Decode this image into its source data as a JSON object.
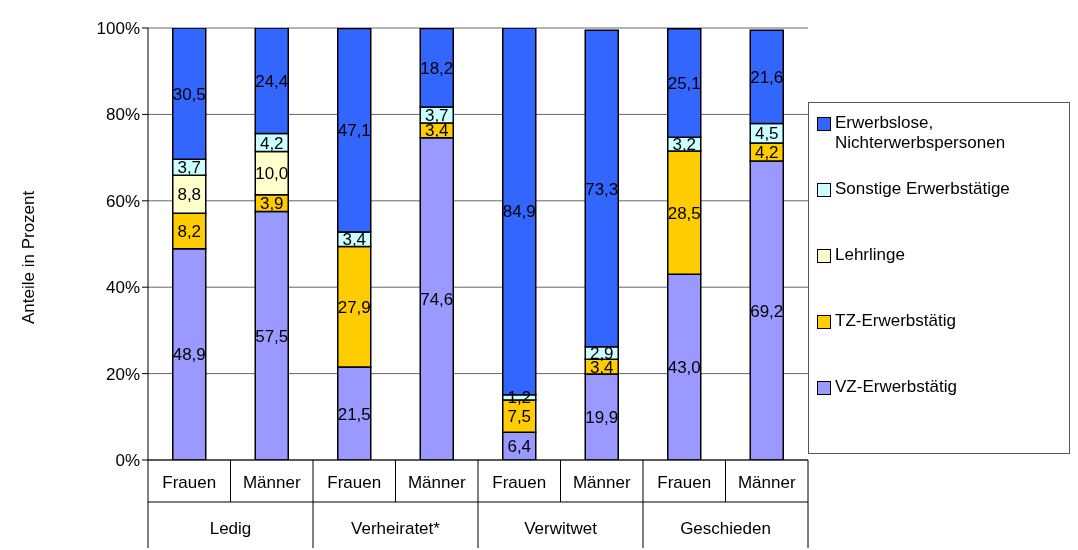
{
  "chart_data": {
    "type": "bar",
    "stacked": true,
    "ylabel": "Anteile in Prozent",
    "categories": [
      "Frauen",
      "Männer",
      "Frauen",
      "Männer",
      "Frauen",
      "Männer",
      "Frauen",
      "Männer"
    ],
    "annotations": [
      "Ledig",
      "Verheiratet*",
      "Verwitwet",
      "Geschieden"
    ],
    "series": [
      {
        "name": "VZ-Erwerbstätig",
        "color": "#9999ff",
        "values": [
          48.9,
          57.5,
          21.5,
          74.6,
          6.4,
          19.9,
          43.0,
          69.2
        ],
        "value_labels": [
          "48,9",
          "57,5",
          "21,5",
          "74,6",
          "6,4",
          "19,9",
          "43,0",
          "69,2"
        ]
      },
      {
        "name": "TZ-Erwerbstätig",
        "color": "#ffcc00",
        "values": [
          8.2,
          3.9,
          27.9,
          3.4,
          7.5,
          3.4,
          28.5,
          4.2
        ],
        "value_labels": [
          "8,2",
          "3,9",
          "27,9",
          "3,4",
          "7,5",
          "3,4",
          "28,5",
          "4,2"
        ]
      },
      {
        "name": "Lehrlinge",
        "color": "#ffffcc",
        "values": [
          8.8,
          10.0,
          null,
          null,
          null,
          null,
          null,
          null
        ],
        "value_labels": [
          "8,8",
          "10,0",
          null,
          null,
          null,
          null,
          null,
          null
        ]
      },
      {
        "name": "Sonstige Erwerbstätige",
        "color": "#ccffff",
        "values": [
          3.7,
          4.2,
          3.4,
          3.7,
          1.2,
          2.9,
          3.2,
          4.5
        ],
        "value_labels": [
          "3,7",
          "4,2",
          "3,4",
          "3,7",
          "1,2",
          "2,9",
          "3,2",
          "4,5"
        ]
      },
      {
        "name": "Erwerbslose, Nichterwerbspersonen",
        "color": "#3366ff",
        "values": [
          30.5,
          24.4,
          47.1,
          18.2,
          84.9,
          73.3,
          25.1,
          21.6
        ],
        "value_labels": [
          "30,5",
          "24,4",
          "47,1",
          "18,2",
          "84,9",
          "73,3",
          "25,1",
          "21,6"
        ]
      }
    ],
    "ylim": [
      0,
      100
    ],
    "yticks": [
      {
        "value": 0,
        "label": "0%"
      },
      {
        "value": 20,
        "label": "20%"
      },
      {
        "value": 40,
        "label": "40%"
      },
      {
        "value": 60,
        "label": "60%"
      },
      {
        "value": 80,
        "label": "80%"
      },
      {
        "value": 100,
        "label": "100%"
      }
    ],
    "grid": "y",
    "legend": "right"
  }
}
